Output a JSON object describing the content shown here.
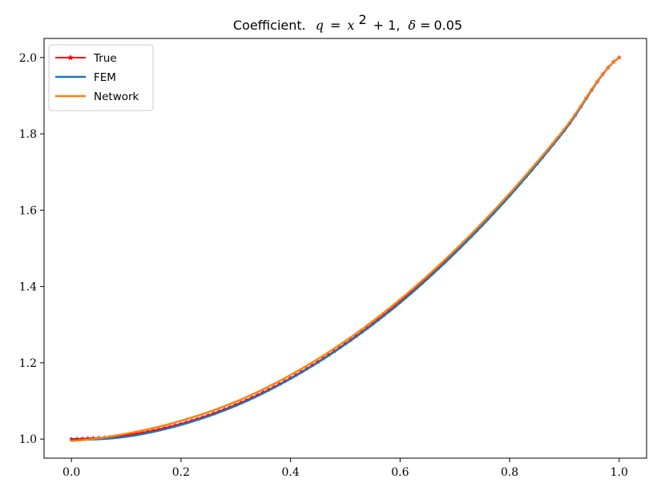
{
  "chart_data": {
    "type": "line",
    "title": {
      "prefix": "Coefficient.",
      "q_var": "q",
      "equals": "=",
      "x_var": "x",
      "exponent": "2",
      "plus_one": "+ 1,",
      "delta": "δ",
      "delta_eq": "=",
      "delta_value": "0.05"
    },
    "xlabel": "",
    "ylabel": "",
    "xlim": [
      -0.05,
      1.05
    ],
    "ylim": [
      0.95,
      2.05
    ],
    "x_ticks": [
      0.0,
      0.2,
      0.4,
      0.6,
      0.8,
      1.0
    ],
    "x_tick_labels": [
      "0.0",
      "0.2",
      "0.4",
      "0.6",
      "0.8",
      "1.0"
    ],
    "y_ticks": [
      1.0,
      1.2,
      1.4,
      1.6,
      1.8,
      2.0
    ],
    "y_tick_labels": [
      "1.0",
      "1.2",
      "1.4",
      "1.6",
      "1.8",
      "2.0"
    ],
    "grid": false,
    "legend_position": "top-left",
    "series": [
      {
        "name": "True",
        "color": "#ff0000",
        "marker": "star",
        "function": "x^2 + 1",
        "x": [
          0.0,
          0.1,
          0.2,
          0.3,
          0.4,
          0.5,
          0.6,
          0.7,
          0.8,
          0.9,
          1.0
        ],
        "y": [
          1.0,
          1.01,
          1.04,
          1.09,
          1.16,
          1.25,
          1.36,
          1.49,
          1.64,
          1.81,
          2.0
        ]
      },
      {
        "name": "FEM",
        "color": "#1f77b4",
        "marker": "none",
        "x": [
          0.0,
          0.1,
          0.2,
          0.3,
          0.4,
          0.5,
          0.6,
          0.7,
          0.8,
          0.9,
          1.0
        ],
        "y": [
          0.997,
          1.006,
          1.037,
          1.087,
          1.158,
          1.248,
          1.357,
          1.487,
          1.637,
          1.808,
          2.0
        ]
      },
      {
        "name": "Network",
        "color": "#ff7f0e",
        "marker": "none",
        "x": [
          0.0,
          0.1,
          0.2,
          0.3,
          0.4,
          0.5,
          0.6,
          0.7,
          0.8,
          0.9,
          1.0
        ],
        "y": [
          0.995,
          1.014,
          1.048,
          1.098,
          1.168,
          1.257,
          1.366,
          1.495,
          1.644,
          1.813,
          2.0
        ]
      }
    ]
  }
}
